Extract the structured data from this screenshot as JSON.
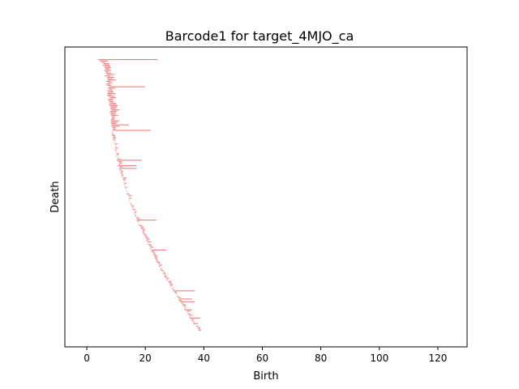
{
  "chart_data": {
    "type": "barcode",
    "title": "Barcode1 for target_4MJO_ca",
    "xlabel": "Birth",
    "ylabel": "Death",
    "xlim": [
      -7.5,
      130
    ],
    "x_ticks": [
      0,
      20,
      40,
      60,
      80,
      100,
      120
    ],
    "x_tick_labels": [
      "0",
      "20",
      "40",
      "60",
      "80",
      "100",
      "120"
    ],
    "y_ticks_visible": false,
    "grid": false,
    "legend": "none",
    "bar_color": "#f08080",
    "bar_count": 200,
    "bar_intervals_sample": [
      {
        "birth": 3.8,
        "death": 24.2
      },
      {
        "birth": 4.8,
        "death": 9.0
      },
      {
        "birth": 5.5,
        "death": 19.7
      },
      {
        "birth": 6.2,
        "death": 12.0
      },
      {
        "birth": 7.0,
        "death": 20.2
      },
      {
        "birth": 8.2,
        "death": 17.8
      },
      {
        "birth": 8.4,
        "death": 14.2
      },
      {
        "birth": 10.2,
        "death": 14.6
      },
      {
        "birth": 13.0,
        "death": 20.3
      },
      {
        "birth": 18.5,
        "death": 28.2
      },
      {
        "birth": 22.5,
        "death": 26.5
      },
      {
        "birth": 32.3,
        "death": 34.8
      },
      {
        "birth": 38.5,
        "death": 39.5
      }
    ]
  }
}
